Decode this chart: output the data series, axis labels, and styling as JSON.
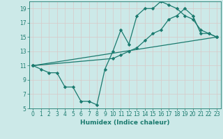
{
  "xlabel": "Humidex (Indice chaleur)",
  "bg_color": "#cce9e8",
  "grid_color": "#e8e8e8",
  "line_color": "#1a7a6e",
  "xlim": [
    -0.5,
    23.5
  ],
  "ylim": [
    5,
    20
  ],
  "yticks": [
    5,
    7,
    9,
    11,
    13,
    15,
    17,
    19
  ],
  "xticks": [
    0,
    1,
    2,
    3,
    4,
    5,
    6,
    7,
    8,
    9,
    10,
    11,
    12,
    13,
    14,
    15,
    16,
    17,
    18,
    19,
    20,
    21,
    22,
    23
  ],
  "lines": [
    {
      "x": [
        0,
        1,
        2,
        3,
        4,
        5,
        6,
        7,
        8,
        9,
        10,
        11,
        12,
        13,
        14,
        15,
        16,
        17,
        18,
        19,
        20,
        21,
        22,
        23
      ],
      "y": [
        11,
        10.5,
        10,
        10,
        8,
        8,
        6,
        6,
        5.5,
        10.5,
        13,
        16,
        14,
        18,
        19,
        19,
        20,
        19.5,
        19,
        18,
        17.5,
        16,
        15.5,
        15
      ]
    },
    {
      "x": [
        0,
        23
      ],
      "y": [
        11,
        15
      ]
    },
    {
      "x": [
        0,
        10,
        11,
        12,
        13,
        14,
        15,
        16,
        17,
        18,
        19,
        20,
        21,
        22,
        23
      ],
      "y": [
        11,
        12,
        12.5,
        13,
        13.5,
        14.5,
        15.5,
        16,
        17.5,
        18,
        19,
        18,
        15.5,
        15.5,
        15
      ]
    }
  ]
}
